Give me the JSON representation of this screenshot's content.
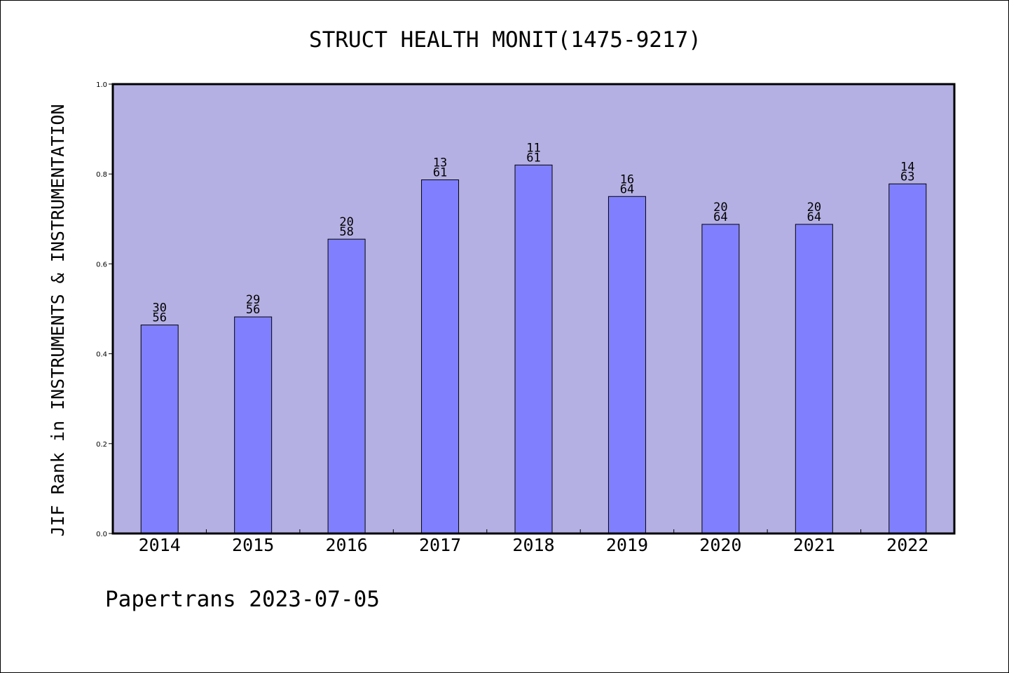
{
  "chart_data": {
    "type": "bar",
    "title": "STRUCT HEALTH MONIT(1475-9217)",
    "xlabel": "",
    "ylabel": "JIF Rank in INSTRUMENTS & INSTRUMENTATION",
    "ylim": [
      0,
      1.0
    ],
    "yticks": [
      "0.0",
      "0.2",
      "0.4",
      "0.6",
      "0.8",
      "1.0"
    ],
    "categories": [
      "2014",
      "2015",
      "2016",
      "2017",
      "2018",
      "2019",
      "2020",
      "2021",
      "2022"
    ],
    "values": [
      0.464,
      0.482,
      0.655,
      0.787,
      0.82,
      0.75,
      0.688,
      0.688,
      0.778
    ],
    "labels": [
      [
        "30",
        "56"
      ],
      [
        "29",
        "56"
      ],
      [
        "20",
        "58"
      ],
      [
        "13",
        "61"
      ],
      [
        "11",
        "61"
      ],
      [
        "16",
        "64"
      ],
      [
        "20",
        "64"
      ],
      [
        "20",
        "64"
      ],
      [
        "14",
        "63"
      ]
    ],
    "grid": false,
    "colors": {
      "plot_background": "#b5b0e3",
      "bar_fill": "#8080ff",
      "bar_stroke": "#000000",
      "frame": "#000000"
    }
  },
  "footer": {
    "text": "Papertrans 2023-07-05"
  }
}
